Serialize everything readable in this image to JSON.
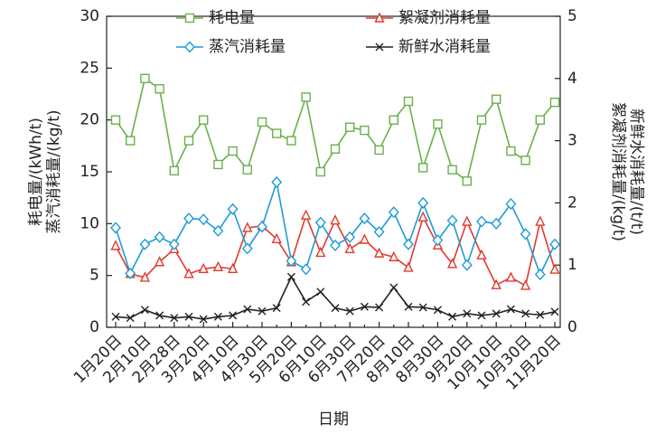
{
  "chart_data": {
    "type": "line",
    "xlabel": "日期",
    "ylabel": [
      "耗电量/(kWh/t)",
      "蒸汽消耗量/(kg/t)"
    ],
    "y2label": [
      "絮凝剂消耗量/(kg/t)",
      "新鲜水消耗量/(t/t)"
    ],
    "categories": [
      "1月20日",
      null,
      "2月10日",
      null,
      "2月28日",
      null,
      "3月20日",
      null,
      "4月10日",
      null,
      "4月30日",
      null,
      "5月20日",
      null,
      "6月10日",
      null,
      "6月30日",
      null,
      "7月20日",
      null,
      "8月10日",
      null,
      "8月30日",
      null,
      "9月20日",
      null,
      "10月10日",
      null,
      "10月30日",
      null,
      "11月20日"
    ],
    "ylim": [
      0,
      30
    ],
    "yticks": [
      0,
      5,
      10,
      15,
      20,
      25,
      30
    ],
    "y2lim": [
      0,
      5
    ],
    "y2ticks": [
      0,
      1,
      2,
      3,
      4,
      5
    ],
    "series": [
      {
        "name": "耗电量",
        "color": "#6ab04c",
        "marker": "square",
        "values": [
          20,
          18,
          24,
          23,
          15.1,
          18,
          20,
          15.7,
          17,
          15.2,
          19.8,
          18.7,
          18,
          22.2,
          15,
          17.2,
          19.3,
          19,
          17.1,
          20,
          21.8,
          15.4,
          19.6,
          15.2,
          14.1,
          20,
          22,
          17,
          16.1,
          20,
          21.7
        ]
      },
      {
        "name": "絮凝剂消耗量",
        "color": "#e03a2f",
        "marker": "triangle",
        "axis": "y2",
        "values": [
          1.31,
          0.86,
          0.8,
          1.05,
          1.26,
          0.86,
          0.94,
          0.97,
          0.94,
          1.6,
          1.63,
          1.42,
          1.05,
          1.8,
          1.2,
          1.72,
          1.26,
          1.41,
          1.19,
          1.13,
          0.96,
          1.77,
          1.32,
          1.02,
          1.7,
          1.16,
          0.68,
          0.8,
          0.67,
          1.7,
          0.93
        ]
      },
      {
        "name": "蒸汽消耗量",
        "color": "#1e9bd7",
        "marker": "diamond",
        "values": [
          9.6,
          5.2,
          8,
          8.7,
          8,
          10.5,
          10.4,
          9.3,
          11.4,
          7.6,
          9.7,
          14,
          6.4,
          5.6,
          10.1,
          7.9,
          8.7,
          10.5,
          9.2,
          11.1,
          8,
          12,
          8.4,
          10.3,
          6,
          10.2,
          10,
          11.9,
          9,
          5.1,
          8
        ]
      },
      {
        "name": "新鲜水消耗量",
        "color": "#222222",
        "marker": "cross",
        "axis": "y2",
        "values": [
          0.17,
          0.15,
          0.28,
          0.19,
          0.15,
          0.17,
          0.13,
          0.17,
          0.19,
          0.29,
          0.26,
          0.31,
          0.81,
          0.41,
          0.57,
          0.31,
          0.26,
          0.33,
          0.32,
          0.64,
          0.33,
          0.32,
          0.28,
          0.17,
          0.22,
          0.19,
          0.22,
          0.29,
          0.22,
          0.2,
          0.25
        ]
      }
    ]
  }
}
